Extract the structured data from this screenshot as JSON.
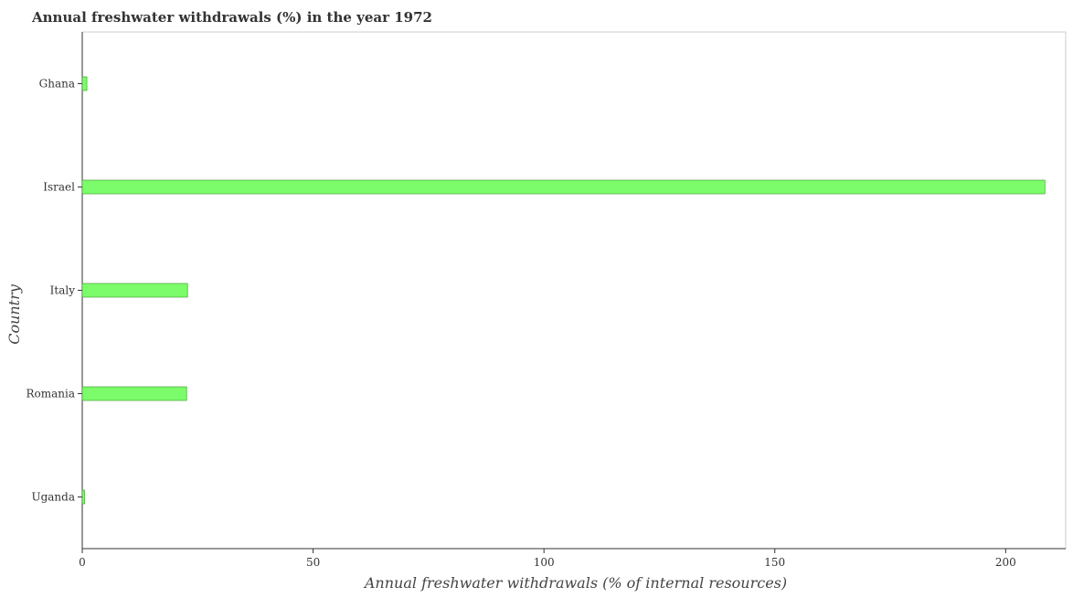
{
  "chart_data": {
    "type": "bar",
    "orientation": "horizontal",
    "title": "Annual freshwater withdrawals (%) in the year 1972",
    "xlabel": "Annual freshwater withdrawals (% of internal resources)",
    "ylabel": "Country",
    "categories": [
      "Ghana",
      "Israel",
      "Italy",
      "Romania",
      "Uganda"
    ],
    "values": [
      1.0,
      208.5,
      22.8,
      22.6,
      0.5
    ],
    "xlim": [
      0,
      213
    ],
    "xticks": [
      0,
      50,
      100,
      150,
      200
    ],
    "bar_color": "#7CFC6A",
    "bar_stroke": "#3a8f2a",
    "grid": false
  }
}
